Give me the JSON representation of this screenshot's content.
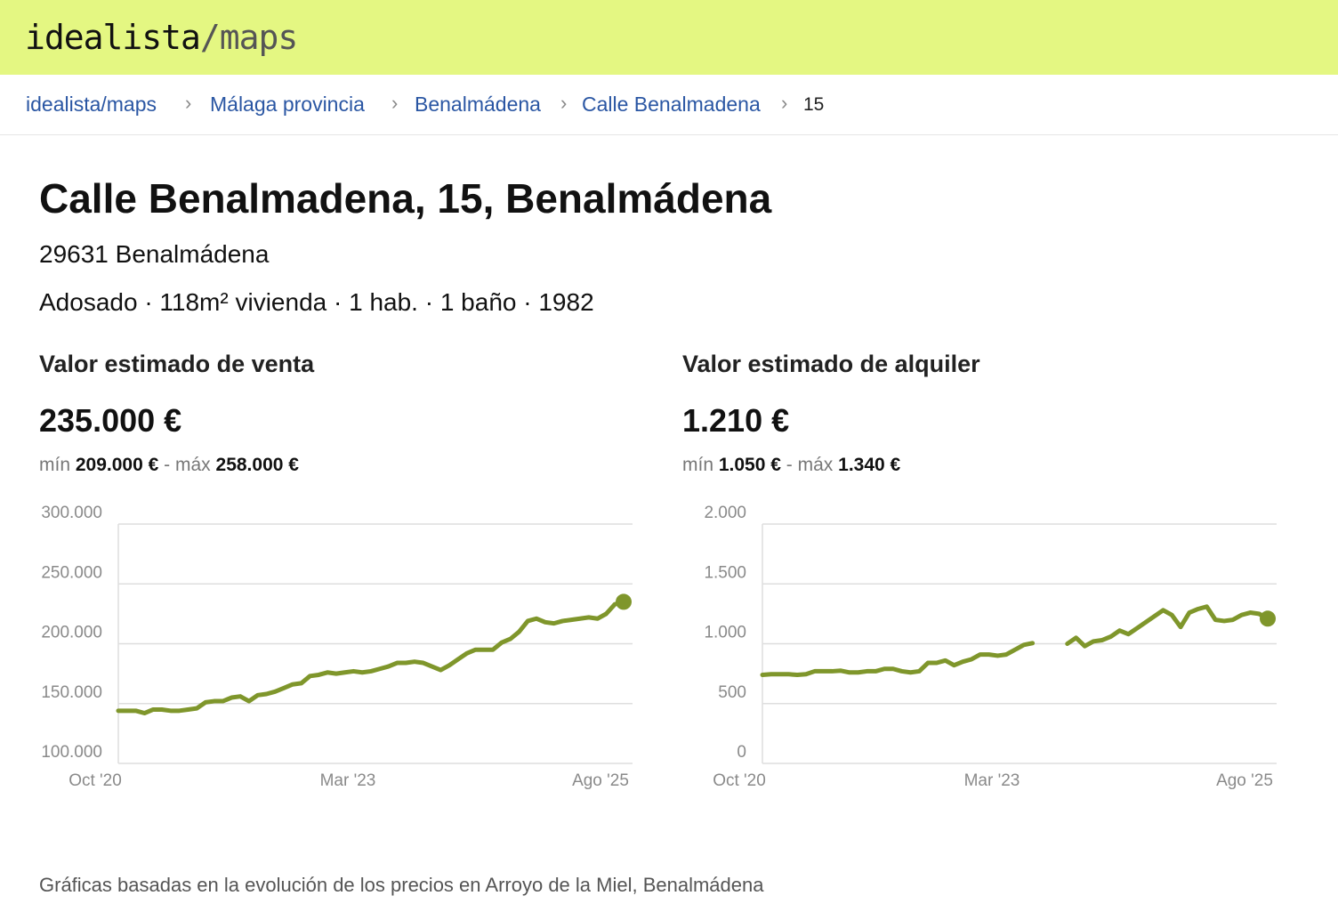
{
  "header": {
    "logo_main": "idealista",
    "logo_sep": "/",
    "logo_sub": "maps"
  },
  "breadcrumb": [
    "idealista/maps",
    "Málaga provincia",
    "Benalmádena",
    "Calle Benalmadena",
    "15"
  ],
  "title": "Calle Benalmadena, 15, Benalmádena",
  "postal": "29631 Benalmádena",
  "features": "Adosado · 118m² vivienda · 1 hab. · 1 baño · 1982",
  "chart_data": [
    {
      "type": "line",
      "title": "Valor estimado de venta",
      "value": "235.000 €",
      "min_label": "mín",
      "min": "209.000 €",
      "range_sep": "-",
      "max_label": "máx",
      "max": "258.000 €",
      "categories": [
        "Oct '20",
        null,
        null,
        null,
        null,
        null,
        null,
        null,
        null,
        null,
        null,
        null,
        null,
        null,
        null,
        null,
        null,
        null,
        null,
        null,
        null,
        null,
        null,
        null,
        null,
        null,
        null,
        null,
        null,
        "Mar '23",
        null,
        null,
        null,
        null,
        null,
        null,
        null,
        null,
        null,
        null,
        null,
        null,
        null,
        null,
        null,
        null,
        null,
        null,
        null,
        null,
        null,
        null,
        null,
        null,
        null,
        null,
        null,
        null,
        "Ago '25"
      ],
      "series": [
        {
          "color": "#7f962b",
          "values": [
            144000,
            144000,
            144000,
            142000,
            145000,
            145000,
            144000,
            144000,
            145000,
            146000,
            151000,
            152000,
            152000,
            155000,
            156000,
            152000,
            157000,
            158000,
            160000,
            163000,
            166000,
            167000,
            173000,
            174000,
            176000,
            175000,
            176000,
            177000,
            176000,
            177000,
            179000,
            181000,
            184000,
            184000,
            185000,
            184000,
            181000,
            178000,
            182000,
            187000,
            192000,
            195000,
            195000,
            195000,
            201000,
            204000,
            210000,
            219000,
            221000,
            218000,
            217000,
            219000,
            220000,
            221000,
            222000,
            221000,
            225000,
            233000,
            235000
          ]
        }
      ],
      "ylim": [
        100000,
        300000
      ],
      "yticks": [
        {
          "value": 100000,
          "label": "100.000"
        },
        {
          "value": 150000,
          "label": "150.000"
        },
        {
          "value": 200000,
          "label": "200.000"
        },
        {
          "value": 250000,
          "label": "250.000"
        },
        {
          "value": 300000,
          "label": "300.000"
        }
      ],
      "grid": true
    },
    {
      "type": "line",
      "title": "Valor estimado de alquiler",
      "value": "1.210 €",
      "min_label": "mín",
      "min": "1.050 €",
      "range_sep": "-",
      "max_label": "máx",
      "max": "1.340 €",
      "categories": [
        "Oct '20",
        null,
        null,
        null,
        null,
        null,
        null,
        null,
        null,
        null,
        null,
        null,
        null,
        null,
        null,
        null,
        null,
        null,
        null,
        null,
        null,
        null,
        null,
        null,
        null,
        null,
        null,
        null,
        null,
        "Mar '23",
        null,
        null,
        null,
        null,
        null,
        null,
        null,
        null,
        null,
        null,
        null,
        null,
        null,
        null,
        null,
        null,
        null,
        null,
        null,
        null,
        null,
        null,
        null,
        null,
        null,
        null,
        null,
        null,
        "Ago '25"
      ],
      "series": [
        {
          "color": "#7f962b",
          "values": [
            740,
            745,
            745,
            745,
            740,
            745,
            770,
            770,
            770,
            775,
            760,
            760,
            770,
            770,
            790,
            790,
            770,
            760,
            770,
            840,
            840,
            860,
            820,
            850,
            870,
            910,
            910,
            900,
            910,
            950,
            990,
            1005,
            null,
            null,
            null,
            1000,
            1050,
            980,
            1020,
            1030,
            1060,
            1110,
            1080,
            1130,
            1180,
            1230,
            1280,
            1240,
            1140,
            1260,
            1290,
            1310,
            1200,
            1190,
            1200,
            1240,
            1260,
            1250,
            1210
          ]
        }
      ],
      "ylim": [
        0,
        2000
      ],
      "yticks": [
        0,
        500,
        {
          "value": 1000,
          "label": "1.000"
        },
        {
          "value": 1500,
          "label": "1.500"
        },
        {
          "value": 2000,
          "label": "2.000"
        }
      ],
      "grid": true
    }
  ],
  "note": "Gráficas basadas en la evolución de los precios en Arroyo de la Miel, Benalmádena"
}
